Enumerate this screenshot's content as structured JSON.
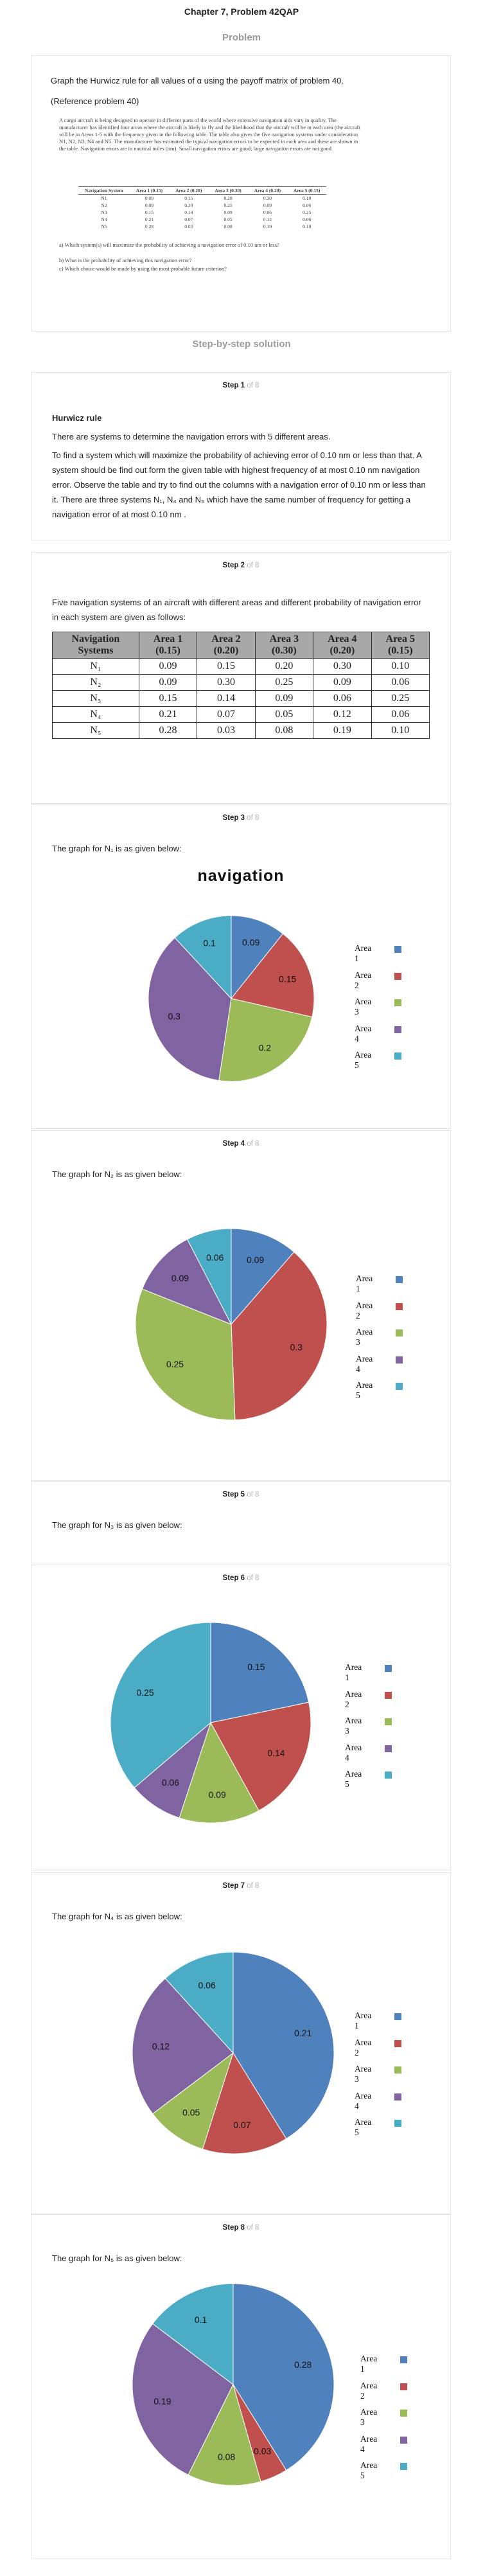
{
  "header": {
    "chapter_title": "Chapter 7, Problem 42QAP",
    "problem_label": "Problem",
    "solution_label": "Step-by-step solution"
  },
  "problem": {
    "statement": "Graph the Hurwicz rule for all values of  α  using the payoff matrix of problem 40.",
    "reference": "(Reference problem 40)",
    "ref_paragraph": "A cargo aircraft is being designed to operate in different parts of the world where extensive navigation aids vary in quality. The manufacturer has identified four areas where the aircraft is likely to fly and the likelihood that the aircraft will be in each area (the aircraft will be in Areas 1-5 with the frequency given in the following table. The table also gives the five navigation systems under consideration N1, N2, N3, N4 and N5. The manufacturer has estimated the typical navigation errors to be expected in each area and these are shown in the table. Navigation errors are in nautical miles (nm). Small navigation errors are good; large navigation errors are not good.",
    "ref_table": {
      "headers": [
        "Navigation System",
        "Area 1 (0.15)",
        "Area 2 (0.20)",
        "Area 3 (0.30)",
        "Area 4 (0.20)",
        "Area 5 (0.15)"
      ],
      "rows": [
        [
          "N1",
          "0.09",
          "0.15",
          "0.20",
          "0.30",
          "0.10"
        ],
        [
          "N2",
          "0.09",
          "0.30",
          "0.25",
          "0.09",
          "0.06"
        ],
        [
          "N3",
          "0.15",
          "0.14",
          "0.09",
          "0.06",
          "0.25"
        ],
        [
          "N4",
          "0.21",
          "0.07",
          "0.05",
          "0.12",
          "0.06"
        ],
        [
          "N5",
          "0.28",
          "0.03",
          "0.08",
          "0.19",
          "0.10"
        ]
      ]
    },
    "ref_questions": [
      "a)  Which system(s) will maximize the probability of achieving a navigation error of 0.10 nm or less?",
      "b)  What is the probability of achieving this navigation error?",
      "c)  Which choice would be made by using the most probable future criterion?"
    ]
  },
  "steps": {
    "of_text": "of 8",
    "s1": {
      "num": "Step 1",
      "title": "Hurwicz rule",
      "p1": "There are systems to determine the navigation errors with 5 different areas.",
      "p2": "To find a system which will maximize the probability of achieving error of  0.10 nm  or less than that. A system should be find out form the given table with highest frequency of at most  0.10 nm  navigation error. Observe the table and try to find out the columns with a navigation error of  0.10 nm  or less than it. There are three systems  N₁, N₄ and N₅ which have the same number of frequency for getting a navigation error of at most  0.10 nm ."
    },
    "s2": {
      "num": "Step 2",
      "intro": "Five navigation systems of an aircraft with different areas and different probability of navigation error in each system are given as follows:",
      "table_headers": [
        "Navigation Systems",
        "Area 1 (0.15)",
        "Area 2 (0.20)",
        "Area 3 (0.30)",
        "Area 4 (0.20)",
        "Area 5 (0.15)"
      ],
      "table_rows": [
        [
          "N₁",
          "0.09",
          "0.15",
          "0.20",
          "0.30",
          "0.10"
        ],
        [
          "N₂",
          "0.09",
          "0.30",
          "0.25",
          "0.09",
          "0.06"
        ],
        [
          "N₃",
          "0.15",
          "0.14",
          "0.09",
          "0.06",
          "0.25"
        ],
        [
          "N₄",
          "0.21",
          "0.07",
          "0.05",
          "0.12",
          "0.06"
        ],
        [
          "N₅",
          "0.28",
          "0.03",
          "0.08",
          "0.19",
          "0.10"
        ]
      ]
    },
    "s3": {
      "num": "Step 3",
      "caption": "The graph for  N₁ is as given below:"
    },
    "s4": {
      "num": "Step 4",
      "caption": "The graph for  N₂ is as given below:"
    },
    "s5": {
      "num": "Step 5",
      "caption": "The graph for  N₃ is as given below:"
    },
    "s6": {
      "num": "Step 6"
    },
    "s7": {
      "num": "Step 7",
      "caption": "The graph for  N₄ is as given below:"
    },
    "s8": {
      "num": "Step 8",
      "caption": "The graph for  N₅ is as given below:"
    }
  },
  "legend_labels": [
    "Area 1",
    "Area 2",
    "Area 3",
    "Area 4",
    "Area 5"
  ],
  "colors": {
    "area1": "#4f81bd",
    "area2": "#c0504d",
    "area3": "#9bbb59",
    "area4": "#8064a2",
    "area5": "#4bacc6"
  },
  "chart_data": [
    {
      "type": "pie",
      "title": "navigation",
      "categories": [
        "Area 1",
        "Area 2",
        "Area 3",
        "Area 4",
        "Area 5"
      ],
      "values": [
        0.09,
        0.15,
        0.2,
        0.3,
        0.1
      ]
    },
    {
      "type": "pie",
      "title": "",
      "categories": [
        "Area 1",
        "Area 2",
        "Area 3",
        "Area 4",
        "Area 5"
      ],
      "values": [
        0.09,
        0.3,
        0.25,
        0.09,
        0.06
      ]
    },
    {
      "type": "pie",
      "title": "",
      "categories": [
        "Area 1",
        "Area 2",
        "Area 3",
        "Area 4",
        "Area 5"
      ],
      "values": [
        0.15,
        0.14,
        0.09,
        0.06,
        0.25
      ]
    },
    {
      "type": "pie",
      "title": "",
      "categories": [
        "Area 1",
        "Area 2",
        "Area 3",
        "Area 4",
        "Area 5"
      ],
      "values": [
        0.21,
        0.07,
        0.05,
        0.12,
        0.06
      ]
    },
    {
      "type": "pie",
      "title": "",
      "categories": [
        "Area 1",
        "Area 2",
        "Area 3",
        "Area 4",
        "Area 5"
      ],
      "values": [
        0.28,
        0.03,
        0.08,
        0.19,
        0.1
      ]
    }
  ]
}
